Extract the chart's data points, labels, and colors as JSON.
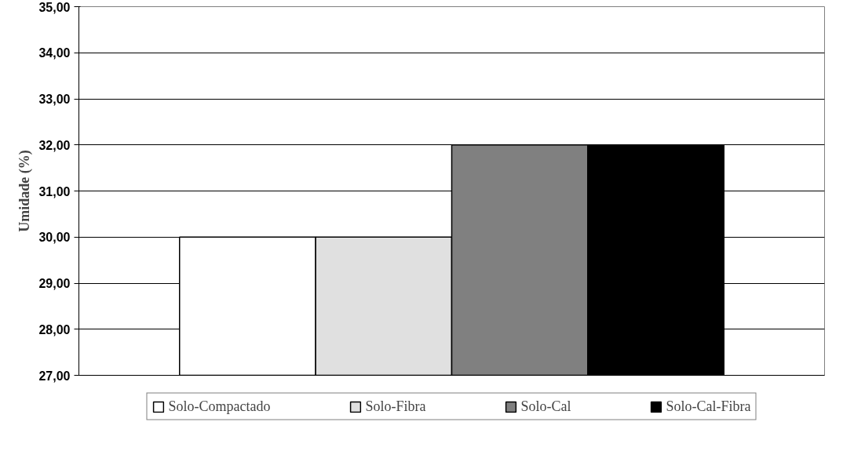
{
  "chart_data": {
    "type": "bar",
    "ylabel": "Umidade (%)",
    "categories": [
      null
    ],
    "series": [
      {
        "name": "Solo-Compactado",
        "color": "#ffffff",
        "values": [
          30
        ]
      },
      {
        "name": "Solo-Fibra",
        "color": "#e0e0e0",
        "values": [
          30
        ]
      },
      {
        "name": "Solo-Cal",
        "color": "#808080",
        "values": [
          32
        ]
      },
      {
        "name": "Solo-Cal-Fibra",
        "color": "#000000",
        "values": [
          32
        ]
      }
    ],
    "ylim": [
      27,
      35
    ],
    "yticks": [
      {
        "value": 27,
        "label": "27,00"
      },
      {
        "value": 28,
        "label": "28,00"
      },
      {
        "value": 29,
        "label": "29,00"
      },
      {
        "value": 30,
        "label": "30,00"
      },
      {
        "value": 31,
        "label": "31,00"
      },
      {
        "value": 32,
        "label": "32,00"
      },
      {
        "value": 33,
        "label": "33,00"
      },
      {
        "value": 34,
        "label": "34,00"
      },
      {
        "value": 35,
        "label": "35,00"
      }
    ],
    "grid": "y",
    "legend": "bottom"
  }
}
